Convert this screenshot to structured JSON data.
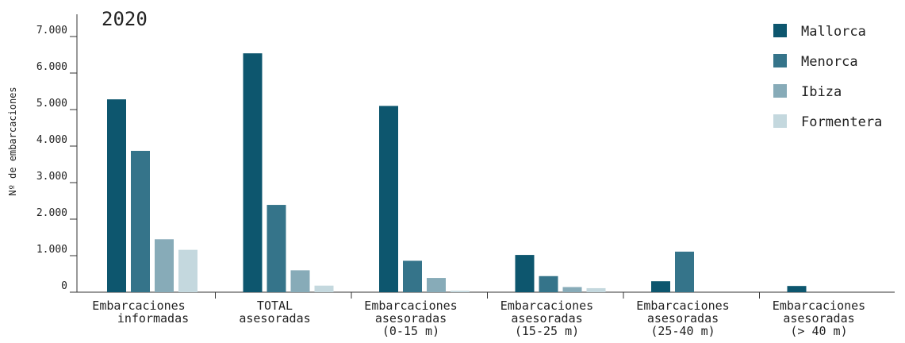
{
  "chart_data": {
    "type": "bar",
    "title": "2020",
    "ylabel": "Nº de embarcaciones",
    "xlabel": "",
    "ylim": [
      0,
      7000
    ],
    "yticks": [
      0,
      1000,
      2000,
      3000,
      4000,
      5000,
      6000,
      7000
    ],
    "ytick_labels": [
      "0",
      "1.000",
      "2.000",
      "3.000",
      "4.000",
      "5.000",
      "6.000",
      "7.000"
    ],
    "categories": [
      [
        "Embarcaciones",
        "informadas"
      ],
      [
        "TOTAL",
        "asesoradas"
      ],
      [
        "Embarcaciones",
        "asesoradas",
        "(0-15 m)"
      ],
      [
        "Embarcaciones",
        "asesoradas",
        "(15-25 m)"
      ],
      [
        "Embarcaciones",
        "asesoradas",
        "(25-40 m)"
      ],
      [
        "Embarcaciones",
        "asesoradas",
        "(> 40 m)"
      ]
    ],
    "series": [
      {
        "name": "Mallorca",
        "color": "#0d566e",
        "values": [
          5280,
          6540,
          5100,
          1020,
          300,
          170
        ]
      },
      {
        "name": "Menorca",
        "color": "#35748a",
        "values": [
          3870,
          2390,
          860,
          440,
          1110,
          0
        ]
      },
      {
        "name": "Ibiza",
        "color": "#87abb8",
        "values": [
          1450,
          600,
          390,
          140,
          0,
          0
        ]
      },
      {
        "name": "Formentera",
        "color": "#c4d8de",
        "values": [
          1160,
          180,
          40,
          110,
          0,
          0
        ]
      }
    ],
    "legend_position": "top-right",
    "grid": false
  }
}
